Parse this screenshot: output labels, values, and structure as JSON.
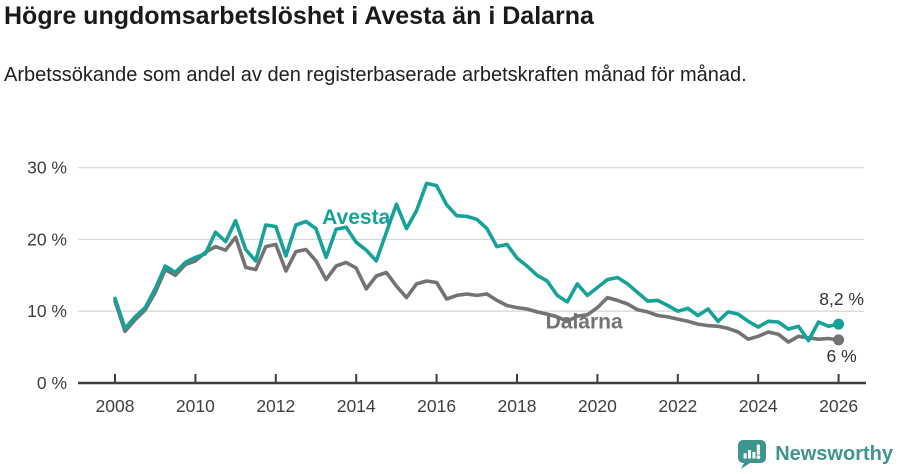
{
  "header": {
    "title": "Högre ungdomsarbetslöshet i Avesta än i Dalarna",
    "subtitle": "Arbetssökande som andel av den registerbaserade arbetskraften månad för månad."
  },
  "chart_data": {
    "type": "line",
    "title": "Högre ungdomsarbetslöshet i Avesta än i Dalarna",
    "subtitle": "Arbetssökande som andel av den registerbaserade arbetskraften månad för månad.",
    "x_unit": "year (quarterly samples)",
    "y_unit": "percent",
    "xlim": [
      2007.9,
      2026.7
    ],
    "ylim": [
      0,
      32
    ],
    "grid": "horizontal",
    "legend": "inline-labels",
    "x": [
      2008,
      2008.25,
      2008.5,
      2008.75,
      2009,
      2009.25,
      2009.5,
      2009.75,
      2010,
      2010.25,
      2010.5,
      2010.75,
      2011,
      2011.25,
      2011.5,
      2011.75,
      2012,
      2012.25,
      2012.5,
      2012.75,
      2013,
      2013.25,
      2013.5,
      2013.75,
      2014,
      2014.25,
      2014.5,
      2014.75,
      2015,
      2015.25,
      2015.5,
      2015.75,
      2016,
      2016.25,
      2016.5,
      2016.75,
      2017,
      2017.25,
      2017.5,
      2017.75,
      2018,
      2018.25,
      2018.5,
      2018.75,
      2019,
      2019.25,
      2019.5,
      2019.75,
      2020,
      2020.25,
      2020.5,
      2020.75,
      2021,
      2021.25,
      2021.5,
      2021.75,
      2022,
      2022.25,
      2022.5,
      2022.75,
      2023,
      2023.25,
      2023.5,
      2023.75,
      2024,
      2024.25,
      2024.5,
      2024.75,
      2025,
      2025.25,
      2025.5,
      2025.75,
      2026
    ],
    "series": [
      {
        "name": "Avesta",
        "color": "#16a298",
        "end_value": 8.2,
        "end_label": "8,2 %",
        "label_pos": {
          "x": 2014.0,
          "y": 23.1
        },
        "values": [
          11.8,
          7.6,
          9.2,
          10.5,
          13.1,
          16.3,
          15.4,
          16.8,
          17.5,
          18,
          21,
          19.7,
          22.6,
          18.6,
          17,
          22,
          21.8,
          17.7,
          22,
          22.5,
          21.5,
          17.5,
          21.4,
          21.7,
          19.6,
          18.5,
          17,
          21,
          24.9,
          21.5,
          24,
          27.8,
          27.5,
          24.8,
          23.3,
          23.2,
          22.8,
          21.5,
          19,
          19.3,
          17.4,
          16.3,
          15,
          14.2,
          12.2,
          11.3,
          13.8,
          12.2,
          13.3,
          14.4,
          14.7,
          13.8,
          12.6,
          11.4,
          11.5,
          10.8,
          10,
          10.4,
          9.4,
          10.3,
          8.6,
          9.9,
          9.6,
          8.6,
          7.8,
          8.6,
          8.5,
          7.5,
          7.9,
          5.9,
          8.5,
          7.9,
          8.2
        ]
      },
      {
        "name": "Dalarna",
        "color": "#737373",
        "end_value": 6.0,
        "end_label": "6 %",
        "label_pos": {
          "x": 2019.67,
          "y": 8.6
        },
        "values": [
          11.4,
          7.2,
          8.8,
          10.2,
          12.6,
          15.8,
          15,
          16.5,
          17,
          18.2,
          19,
          18.5,
          20.3,
          16.1,
          15.8,
          19,
          19.3,
          15.6,
          18.3,
          18.6,
          17,
          14.4,
          16.3,
          16.8,
          16,
          13.1,
          14.9,
          15.4,
          13.5,
          11.9,
          13.8,
          14.2,
          14,
          11.7,
          12.2,
          12.4,
          12.2,
          12.4,
          11.5,
          10.8,
          10.5,
          10.3,
          9.9,
          9.6,
          9.2,
          8.6,
          9.3,
          9.5,
          10.5,
          11.9,
          11.5,
          11,
          10.2,
          9.9,
          9.4,
          9.2,
          8.9,
          8.6,
          8.2,
          8,
          7.9,
          7.6,
          7.1,
          6.1,
          6.5,
          7.1,
          6.8,
          5.7,
          6.5,
          6.3,
          6.1,
          6.2,
          6
        ]
      }
    ],
    "xticks": [
      2008,
      2010,
      2012,
      2014,
      2016,
      2018,
      2020,
      2022,
      2024,
      2026
    ],
    "xtick_labels": [
      "2008",
      "2010",
      "2012",
      "2014",
      "2016",
      "2018",
      "2020",
      "2022",
      "2024",
      "2026"
    ],
    "yticks": [
      0,
      10,
      20,
      30
    ],
    "ytick_labels": [
      "0 %",
      "10 %",
      "20 %",
      "30 %"
    ]
  },
  "footer": {
    "brand": "Newsworthy"
  },
  "colors": {
    "accent_teal": "#16a298",
    "series_gray": "#737373",
    "grid": "#d9d9d9",
    "axis": "#3d3d3d",
    "tick_text": "#3f3f3f",
    "annotation_text": "#333333",
    "logo_teal": "#3e948e"
  }
}
